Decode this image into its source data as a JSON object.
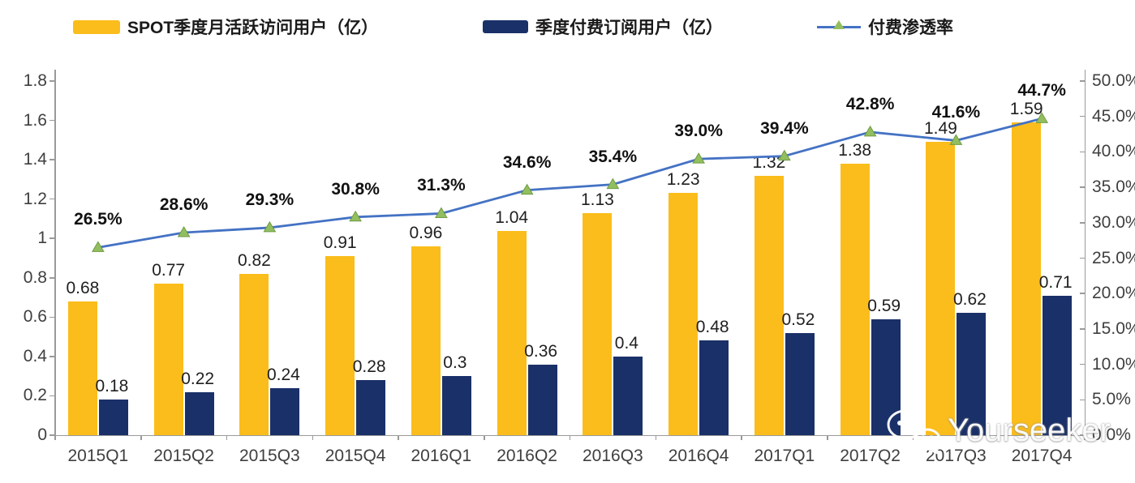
{
  "legend": {
    "items": [
      {
        "label": "SPOT季度月活跃访问用户（亿）",
        "swatch": "bar",
        "color": "#FBBD1B"
      },
      {
        "label": "季度付费订阅用户（亿）",
        "swatch": "bar",
        "color": "#1A3068"
      },
      {
        "label": "付费渗透率",
        "swatch": "line",
        "color": "#4472C4",
        "marker": "triangle",
        "marker_color": "#93BE5F",
        "marker_edge": "#6E9C42"
      }
    ]
  },
  "watermark": {
    "text": "Yourseeker",
    "icon": "wechat-icon"
  },
  "chart_data": {
    "type": "combo-bar-line",
    "categories": [
      "2015Q1",
      "2015Q2",
      "2015Q3",
      "2015Q4",
      "2016Q1",
      "2016Q2",
      "2016Q3",
      "2016Q4",
      "2017Q1",
      "2017Q2",
      "2017Q3",
      "2017Q4"
    ],
    "series": [
      {
        "name": "SPOT季度月活跃访问用户（亿）",
        "type": "bar",
        "axis": "left",
        "color": "#FBBD1B",
        "values": [
          0.68,
          0.77,
          0.82,
          0.91,
          0.96,
          1.04,
          1.13,
          1.23,
          1.32,
          1.38,
          1.49,
          1.59
        ]
      },
      {
        "name": "季度付费订阅用户（亿）",
        "type": "bar",
        "axis": "left",
        "color": "#1A3068",
        "values": [
          0.18,
          0.22,
          0.24,
          0.28,
          0.3,
          0.36,
          0.4,
          0.48,
          0.52,
          0.59,
          0.62,
          0.71
        ]
      },
      {
        "name": "付费渗透率",
        "type": "line",
        "axis": "right",
        "color": "#4472C4",
        "marker_color": "#93BE5F",
        "marker_edge": "#6E9C42",
        "values": [
          26.5,
          28.6,
          29.3,
          30.8,
          31.3,
          34.6,
          35.4,
          39.0,
          39.4,
          42.8,
          41.6,
          44.7
        ],
        "labels": [
          "26.5%",
          "28.6%",
          "29.3%",
          "30.8%",
          "31.3%",
          "34.6%",
          "35.4%",
          "39.0%",
          "39.4%",
          "42.8%",
          "41.6%",
          "44.7%"
        ]
      }
    ],
    "left_axis": {
      "min": 0,
      "max": 1.8,
      "step": 0.2,
      "ticks_top_to_bottom": [
        "1.8",
        "1.6",
        "1.4",
        "1.2",
        "1",
        "0.8",
        "0.6",
        "0.4",
        "0.2",
        "0"
      ]
    },
    "right_axis": {
      "min": 0,
      "max": 50,
      "step": 5,
      "ticks_top_to_bottom": [
        "50.0%",
        "45.0%",
        "40.0%",
        "35.0%",
        "30.0%",
        "25.0%",
        "20.0%",
        "15.0%",
        "10.0%",
        "5.0%",
        "0.0%"
      ]
    },
    "grid": false,
    "legend_position": "top"
  }
}
